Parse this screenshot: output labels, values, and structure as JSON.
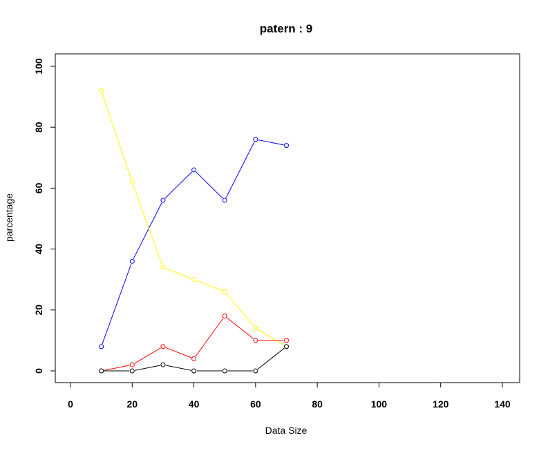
{
  "chart_data": {
    "type": "line",
    "title": "patern :  9",
    "xlabel": "Data Size",
    "ylabel": "parcentage",
    "xlim": [
      0,
      140
    ],
    "ylim": [
      0,
      100
    ],
    "x_ticks": [
      0,
      20,
      40,
      60,
      80,
      100,
      120,
      140
    ],
    "y_ticks": [
      0,
      20,
      40,
      60,
      80,
      100
    ],
    "grid": false,
    "x": [
      10,
      20,
      30,
      40,
      50,
      60,
      70
    ],
    "series": [
      {
        "color": "#0000ff",
        "values": [
          8,
          36,
          56,
          66,
          56,
          76,
          74
        ]
      },
      {
        "color": "#ffff00",
        "values": [
          92,
          62,
          34,
          30,
          26,
          14,
          8
        ]
      },
      {
        "color": "#ff0000",
        "values": [
          0,
          2,
          8,
          4,
          18,
          10,
          10
        ]
      },
      {
        "color": "#000000",
        "values": [
          0,
          0,
          2,
          0,
          0,
          0,
          8
        ]
      }
    ]
  }
}
